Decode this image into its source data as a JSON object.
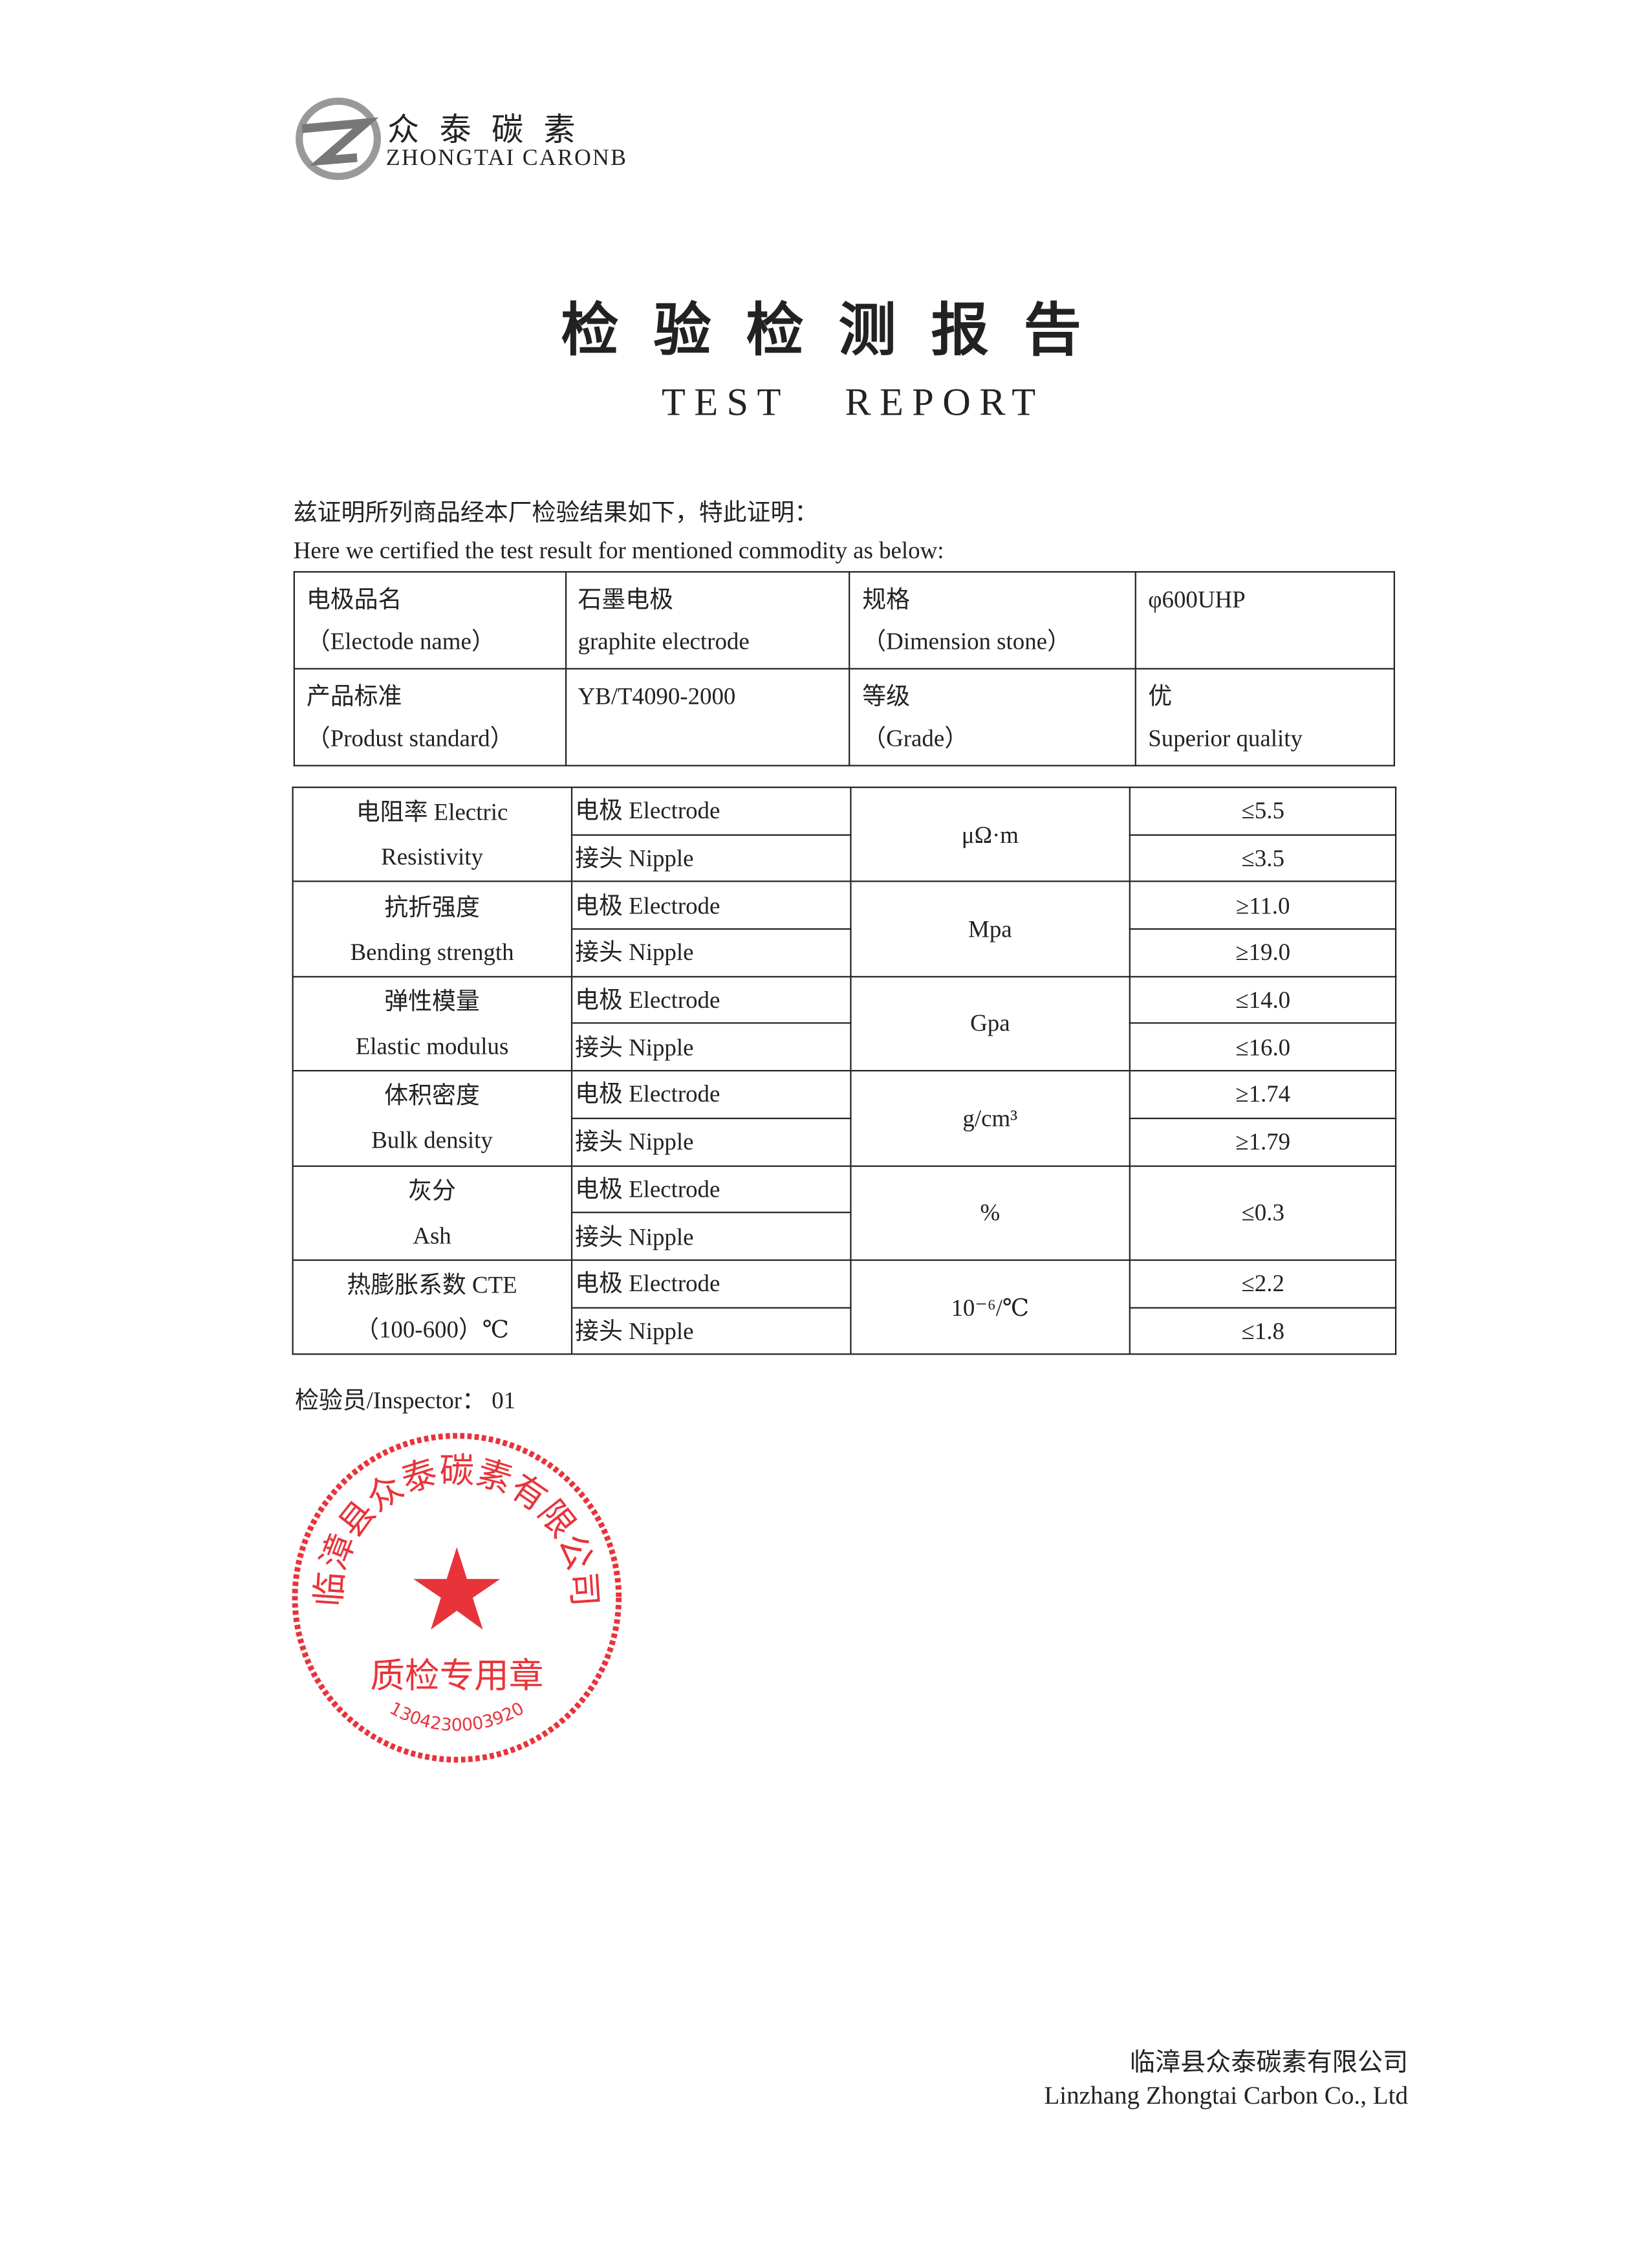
{
  "logo": {
    "cn": "众泰碳素",
    "en": "ZHONGTAI CARONB"
  },
  "title": {
    "cn": "检验检测报告",
    "en": "TEST REPORT"
  },
  "intro": {
    "cn": "兹证明所列商品经本厂检验结果如下，特此证明：",
    "en": "Here we certified the test result for mentioned commodity as below:"
  },
  "info": [
    [
      {
        "cn": "电极品名",
        "en": "（Electode name）"
      },
      {
        "cn": "石墨电极",
        "en": "graphite electrode"
      },
      {
        "cn": "规格",
        "en": "（Dimension stone）"
      },
      {
        "cn": "φ600UHP",
        "en": ""
      }
    ],
    [
      {
        "cn": "产品标准",
        "en": "（Produst standard）"
      },
      {
        "cn": "YB/T4090-2000",
        "en": ""
      },
      {
        "cn": "等级",
        "en": "（Grade）"
      },
      {
        "cn": "优",
        "en": "Superior quality"
      }
    ]
  ],
  "props": [
    {
      "cn": "电阻率 Electric",
      "en": "Resistivity",
      "unit": "μΩ·m",
      "values": [
        "≤5.5",
        "≤3.5"
      ]
    },
    {
      "cn": "抗折强度",
      "en": "Bending strength",
      "unit": "Mpa",
      "values": [
        "≥11.0",
        "≥19.0"
      ]
    },
    {
      "cn": "弹性模量",
      "en": "Elastic modulus",
      "unit": "Gpa",
      "values": [
        "≤14.0",
        "≤16.0"
      ]
    },
    {
      "cn": "体积密度",
      "en": "Bulk density",
      "unit": "g/cm³",
      "values": [
        "≥1.74",
        "≥1.79"
      ]
    },
    {
      "cn": "灰分",
      "en": "Ash",
      "unit": "%",
      "values": [
        "≤0.3"
      ]
    },
    {
      "cn": "热膨胀系数  CTE",
      "en": "（100-600）℃",
      "unit": "10⁻⁶/℃",
      "values": [
        "≤2.2",
        "≤1.8"
      ]
    }
  ],
  "parts": {
    "electrode": "电极 Electrode",
    "nipple": "接头 Nipple"
  },
  "inspector": "检验员/Inspector：  01",
  "stamp": {
    "top": "临漳县众泰碳素有限公司",
    "middle": "质检专用章",
    "number": "1304230003920",
    "color": "#e8333a"
  },
  "footer": {
    "cn": "临漳县众泰碳素有限公司",
    "en": "Linzhang Zhongtai Carbon Co., Ltd"
  }
}
